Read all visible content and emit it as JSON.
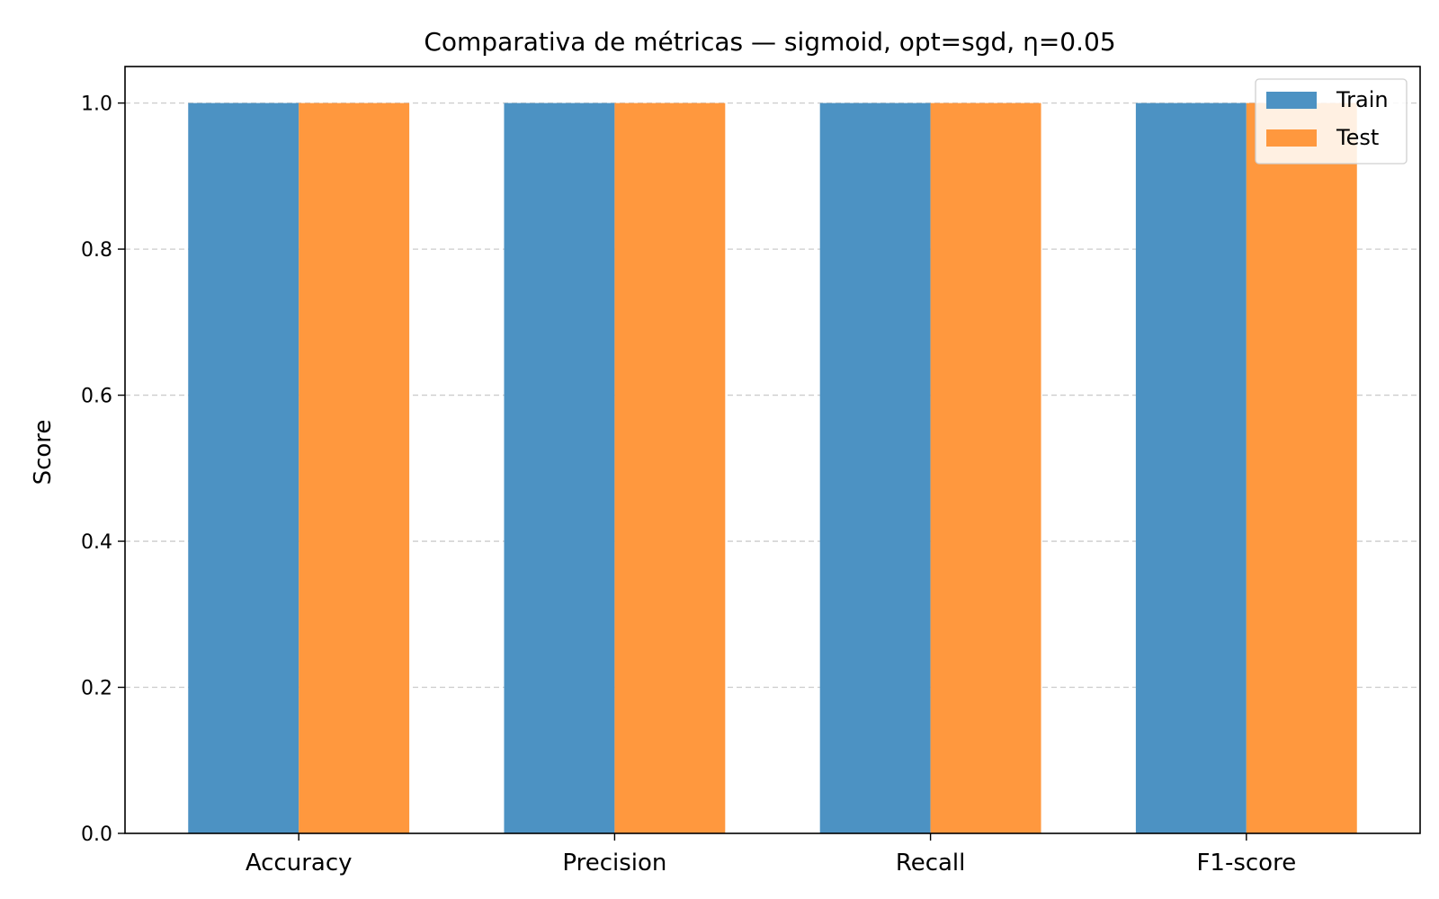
{
  "chart_data": {
    "type": "bar",
    "title": "Comparativa de métricas — sigmoid, opt=sgd, η=0.05",
    "xlabel": "",
    "ylabel": "Score",
    "categories": [
      "Accuracy",
      "Precision",
      "Recall",
      "F1-score"
    ],
    "series": [
      {
        "name": "Train",
        "values": [
          1.0,
          1.0,
          1.0,
          1.0
        ],
        "color": "#4c92c3"
      },
      {
        "name": "Test",
        "values": [
          1.0,
          1.0,
          1.0,
          1.0
        ],
        "color": "#ff983e"
      }
    ],
    "ylim": [
      0,
      1.05
    ],
    "yticks": [
      "0.0",
      "0.2",
      "0.4",
      "0.6",
      "0.8",
      "1.0"
    ],
    "grid": "horizontal dashed",
    "legend_position": "top-right"
  }
}
